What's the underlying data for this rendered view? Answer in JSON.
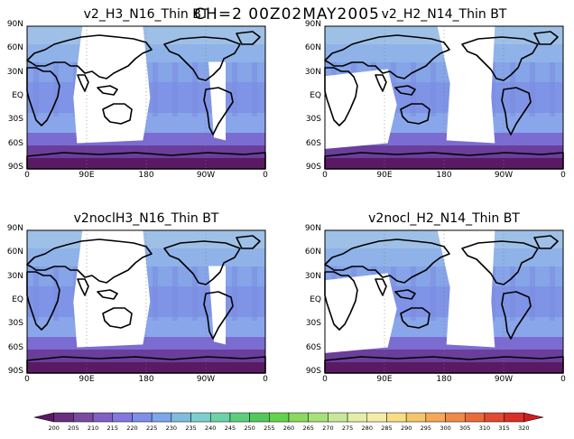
{
  "title": "CH=2   00Z02MAY2005",
  "panels": [
    {
      "title": "v2_H3_N16_Thin BT",
      "gap": [
        70,
        175,
        255,
        300
      ],
      "gap_shape": "left"
    },
    {
      "title": "v2_H2_N14_Thin BT",
      "gap": [
        0,
        95,
        170,
        265
      ],
      "gap_shape": "right"
    },
    {
      "title": "v2noclH3_N16_Thin BT",
      "gap": [
        70,
        175,
        255,
        300
      ],
      "gap_shape": "left"
    },
    {
      "title": "v2nocl_H2_N14_Thin BT",
      "gap": [
        0,
        95,
        170,
        265
      ],
      "gap_shape": "right"
    }
  ],
  "lat_ticks": [
    "90N",
    "60N",
    "30N",
    "EQ",
    "30S",
    "60S",
    "90S"
  ],
  "lon_ticks": [
    "0",
    "90E",
    "180",
    "90W",
    "0"
  ],
  "colorbar": {
    "labels": [
      "200",
      "205",
      "210",
      "215",
      "220",
      "225",
      "230",
      "235",
      "240",
      "245",
      "250",
      "255",
      "260",
      "265",
      "270",
      "275",
      "280",
      "285",
      "290",
      "295",
      "300",
      "305",
      "310",
      "315",
      "320"
    ],
    "colors": [
      "#5a1a63",
      "#6a2e7d",
      "#7b4aa0",
      "#8060c2",
      "#8278dd",
      "#7f8ee8",
      "#7ea6e8",
      "#7fbde0",
      "#7dcfcc",
      "#6fd1a8",
      "#5ccf7d",
      "#54c95b",
      "#65d24e",
      "#8bd95e",
      "#a8e07a",
      "#c8e897",
      "#e4eea6",
      "#f4edaa",
      "#f7dd86",
      "#f5c56b",
      "#f3a957",
      "#ef8a48",
      "#ea6a3a",
      "#e24a32",
      "#d93028",
      "#cc1f1f"
    ]
  }
}
